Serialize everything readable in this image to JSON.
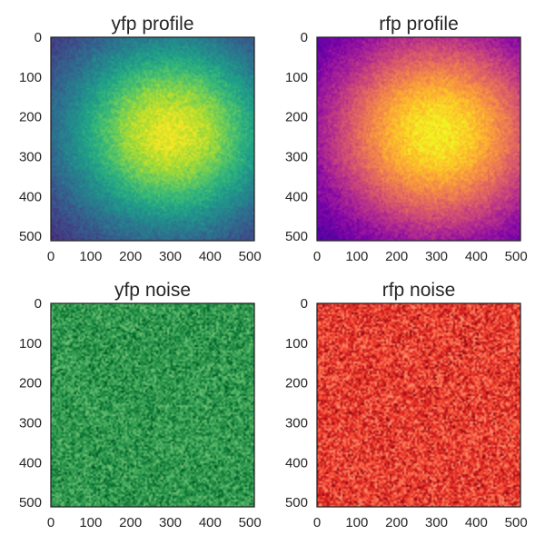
{
  "chart_data": [
    {
      "type": "heatmap",
      "title": "yfp profile",
      "colormap": "viridis",
      "pattern": "profile",
      "xlim": [
        0,
        511
      ],
      "ylim": [
        511,
        0
      ],
      "xticks": [
        0,
        100,
        200,
        300,
        400,
        500
      ],
      "xtick_labels": [
        "0",
        "100",
        "200",
        "300",
        "400",
        "500"
      ],
      "yticks": [
        0,
        100,
        200,
        300,
        400,
        500
      ],
      "ytick_labels": [
        "0",
        "100",
        "200",
        "300",
        "400",
        "500"
      ],
      "peak_center": [
        300,
        240
      ],
      "noise_level": 0.08
    },
    {
      "type": "heatmap",
      "title": "rfp profile",
      "colormap": "plasma",
      "pattern": "profile",
      "xlim": [
        0,
        511
      ],
      "ylim": [
        511,
        0
      ],
      "xticks": [
        0,
        100,
        200,
        300,
        400,
        500
      ],
      "xtick_labels": [
        "0",
        "100",
        "200",
        "300",
        "400",
        "500"
      ],
      "yticks": [
        0,
        100,
        200,
        300,
        400,
        500
      ],
      "ytick_labels": [
        "0",
        "100",
        "200",
        "300",
        "400",
        "500"
      ],
      "peak_center": [
        300,
        240
      ],
      "noise_level": 0.08
    },
    {
      "type": "heatmap",
      "title": "yfp noise",
      "colormap": "greens",
      "pattern": "noise",
      "xlim": [
        0,
        511
      ],
      "ylim": [
        511,
        0
      ],
      "xticks": [
        0,
        100,
        200,
        300,
        400,
        500
      ],
      "xtick_labels": [
        "0",
        "100",
        "200",
        "300",
        "400",
        "500"
      ],
      "yticks": [
        0,
        100,
        200,
        300,
        400,
        500
      ],
      "ytick_labels": [
        "0",
        "100",
        "200",
        "300",
        "400",
        "500"
      ],
      "noise_level": 0.12
    },
    {
      "type": "heatmap",
      "title": "rfp noise",
      "colormap": "reds",
      "pattern": "noise",
      "xlim": [
        0,
        511
      ],
      "ylim": [
        511,
        0
      ],
      "xticks": [
        0,
        100,
        200,
        300,
        400,
        500
      ],
      "xtick_labels": [
        "0",
        "100",
        "200",
        "300",
        "400",
        "500"
      ],
      "yticks": [
        0,
        100,
        200,
        300,
        400,
        500
      ],
      "ytick_labels": [
        "0",
        "100",
        "200",
        "300",
        "400",
        "500"
      ],
      "noise_level": 0.12
    }
  ],
  "colors": {
    "axis_frame": "#262626",
    "background": "#ffffff",
    "text": "#262626"
  }
}
